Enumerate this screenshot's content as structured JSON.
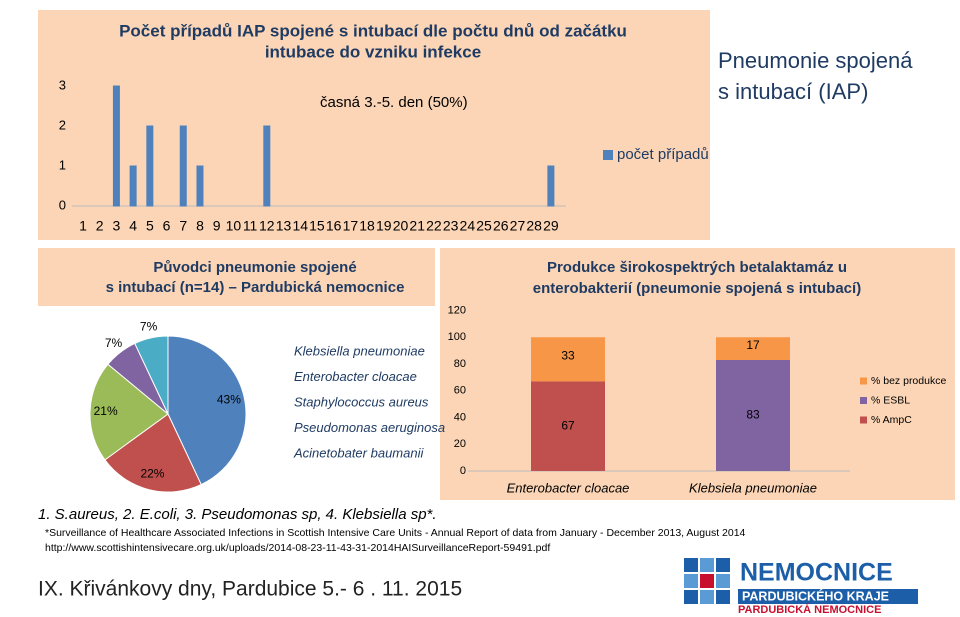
{
  "slide_title": [
    "Pneumonie spojená",
    "s intubací (IAP)"
  ],
  "chart_data": [
    {
      "type": "bar",
      "title": [
        "Počet případů IAP spojené s intubací dle počtu dnů od začátku",
        "intubace do vzniku infekce"
      ],
      "annotation": "časná  3.-5. den (50%)",
      "categories": [
        "1",
        "2",
        "3",
        "4",
        "5",
        "6",
        "7",
        "8",
        "9",
        "10",
        "11",
        "12",
        "13",
        "14",
        "15",
        "16",
        "17",
        "18",
        "19",
        "20",
        "21",
        "22",
        "23",
        "24",
        "25",
        "26",
        "27",
        "28",
        "29"
      ],
      "series": [
        {
          "name": "počet případů",
          "color": "#4f81bd",
          "values": [
            0,
            0,
            3,
            1,
            2,
            0,
            2,
            1,
            0,
            0,
            0,
            2,
            0,
            0,
            0,
            0,
            0,
            0,
            0,
            0,
            0,
            0,
            0,
            0,
            0,
            0,
            0,
            0,
            1
          ]
        }
      ],
      "ylim": [
        0,
        3
      ],
      "yticks": [
        0,
        1,
        2,
        3
      ],
      "legend": "right"
    },
    {
      "type": "pie",
      "title": [
        "Původci pneumonie spojené",
        "s intubací (n=14)  – Pardubická nemocnice"
      ],
      "categories": [
        "Klebsiella pneumoniae",
        "Enterobacter cloacae",
        "Staphylococcus aureus",
        "Pseudomonas aeruginosa",
        "Acinetobater baumanii"
      ],
      "values": [
        43,
        22,
        21,
        7,
        7
      ],
      "value_labels": [
        "43%",
        "22%",
        "21%",
        "7%",
        "7%"
      ],
      "colors": [
        "#4f81bd",
        "#c0504d",
        "#9bbb59",
        "#8064a2",
        "#4bacc6"
      ],
      "legend": "right"
    },
    {
      "type": "bar",
      "stacked": true,
      "title": [
        "Produkce širokospektrých betalaktamáz u",
        "enterobakterií  (pneumonie spojená s intubací)"
      ],
      "categories": [
        "Enterobacter cloacae",
        "Klebsiela pneumoniae"
      ],
      "series": [
        {
          "name": "% bez produkce",
          "color": "#f79646",
          "values": [
            33,
            17
          ]
        },
        {
          "name": "% ESBL",
          "color": "#8064a2",
          "values": [
            0,
            83
          ]
        },
        {
          "name": "% AmpC",
          "color": "#c0504d",
          "values": [
            67,
            0
          ]
        }
      ],
      "ylim": [
        0,
        120
      ],
      "yticks": [
        0,
        20,
        40,
        60,
        80,
        100,
        120
      ],
      "legend": "right"
    }
  ],
  "note": "1. S.aureus, 2. E.coli, 3. Pseudomonas sp,  4. Klebsiella sp*.",
  "source": [
    "*Surveillance of Healthcare Associated Infections in Scottish Intensive Care Units - Annual Report of data from January - December 2013, August 2014",
    "http://www.scottishintensivecare.org.uk/uploads/2014-08-23-11-43-31-2014HAISurveillanceReport-59491.pdf"
  ],
  "footer": "IX. Křivánkovy dny, Pardubice 5.- 6 . 11. 2015",
  "logo": [
    "NEMOCNICE",
    "PARDUBICKÉHO KRAJE",
    "PARDUBICKÁ NEMOCNICE"
  ]
}
